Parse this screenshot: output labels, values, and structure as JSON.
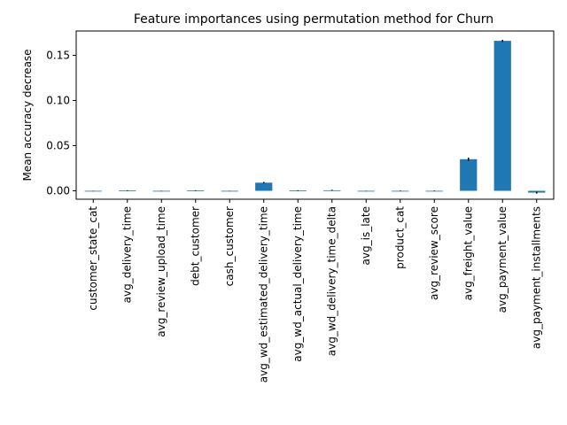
{
  "chart_data": {
    "type": "bar",
    "title": "Feature importances using permutation method for Churn",
    "xlabel": "",
    "ylabel": "Mean accuracy decrease",
    "categories": [
      "customer_state_cat",
      "avg_delivery_time",
      "avg_review_upload_time",
      "debt_customer",
      "cash_customer",
      "avg_wd_estimated_delivery_time",
      "avg_wd_actual_delivery_time",
      "avg_wd_delivery_time_delta",
      "avg_is_late",
      "product_cat",
      "avg_review_score",
      "avg_freight_value",
      "avg_payment_value",
      "avg_payment_installments"
    ],
    "values": [
      -0.0003,
      0.0003,
      -0.0003,
      0.0003,
      -0.0003,
      0.009,
      0.0003,
      0.0006,
      -0.0003,
      0.0,
      0.0,
      0.035,
      0.166,
      -0.002
    ],
    "errors": [
      0.0003,
      0.0003,
      0.0003,
      0.0003,
      0.0003,
      0.0008,
      0.0003,
      0.0005,
      0.0003,
      0.0003,
      0.0003,
      0.0018,
      0.0012,
      0.001
    ],
    "yticks": [
      0.0,
      0.05,
      0.1,
      0.15
    ],
    "ytick_labels": [
      "0.00",
      "0.05",
      "0.10",
      "0.15"
    ],
    "ylim": [
      -0.0093,
      0.1769
    ],
    "grid": false,
    "legend": "none",
    "colors": {
      "bar": "#1f77b4",
      "error": "#000000",
      "axes": "#000000"
    }
  }
}
